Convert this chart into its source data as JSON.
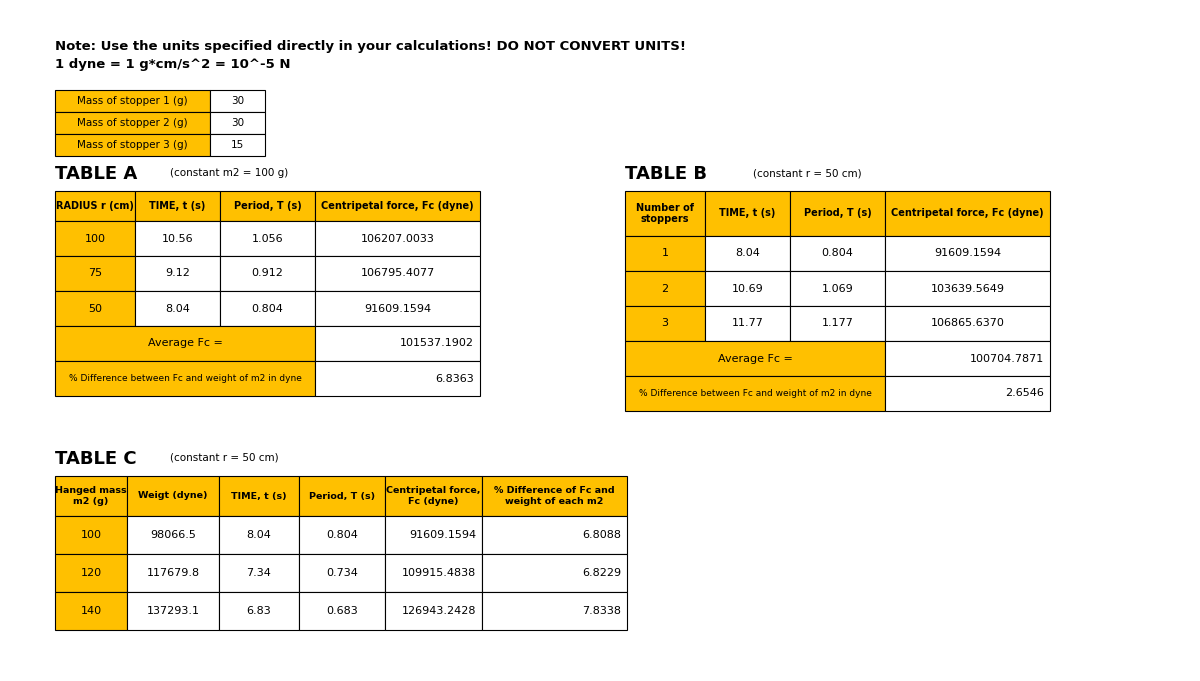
{
  "note_line1": "Note: Use the units specified directly in your calculations! DO NOT CONVERT UNITS!",
  "note_line2": "1 dyne = 1 g*cm/s^2 = 10^-5 N",
  "stopper_labels": [
    "Mass of stopper 1 (g)",
    "Mass of stopper 2 (g)",
    "Mass of stopper 3 (g)"
  ],
  "stopper_values": [
    "30",
    "30",
    "15"
  ],
  "table_a_title": "TABLE A",
  "table_a_subtitle": "(constant m2 = 100 g)",
  "table_a_headers": [
    "RADIUS r (cm)",
    "TIME, t (s)",
    "Period, T (s)",
    "Centripetal force, Fc (dyne)"
  ],
  "table_a_data": [
    [
      "100",
      "10.56",
      "1.056",
      "106207.0033"
    ],
    [
      "75",
      "9.12",
      "0.912",
      "106795.4077"
    ],
    [
      "50",
      "8.04",
      "0.804",
      "91609.1594"
    ]
  ],
  "table_a_avg": "101537.1902",
  "table_a_pct": "6.8363",
  "table_b_title": "TABLE B",
  "table_b_subtitle": "(constant r = 50 cm)",
  "table_b_headers": [
    "Number of\nstoppers",
    "TIME, t (s)",
    "Period, T (s)",
    "Centripetal force, Fc (dyne)"
  ],
  "table_b_data": [
    [
      "1",
      "8.04",
      "0.804",
      "91609.1594"
    ],
    [
      "2",
      "10.69",
      "1.069",
      "103639.5649"
    ],
    [
      "3",
      "11.77",
      "1.177",
      "106865.6370"
    ]
  ],
  "table_b_avg": "100704.7871",
  "table_b_pct": "2.6546",
  "table_c_title": "TABLE C",
  "table_c_subtitle": "(constant r = 50 cm)",
  "table_c_headers": [
    "Hanged mass\nm2 (g)",
    "Weigt (dyne)",
    "TIME, t (s)",
    "Period, T (s)",
    "Centripetal force,\nFc (dyne)",
    "% Difference of Fc and\nweight of each m2"
  ],
  "table_c_data": [
    [
      "100",
      "98066.5",
      "8.04",
      "0.804",
      "91609.1594",
      "6.8088"
    ],
    [
      "120",
      "117679.8",
      "7.34",
      "0.734",
      "109915.4838",
      "6.8229"
    ],
    [
      "140",
      "137293.1",
      "6.83",
      "0.683",
      "126943.2428",
      "7.8338"
    ]
  ],
  "yellow": "#FFC000",
  "white": "#FFFFFF",
  "black": "#000000",
  "fig_w": 12.0,
  "fig_h": 6.81,
  "dpi": 100
}
